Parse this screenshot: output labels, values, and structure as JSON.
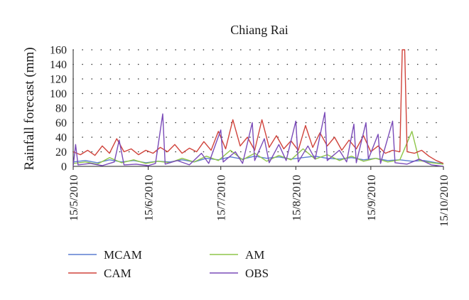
{
  "chart_data": {
    "type": "line",
    "title": "Chiang Rai",
    "ylabel": "Rainfall forecast (mm)",
    "xlabel": "",
    "ylim": [
      0,
      160
    ],
    "yticks": [
      0,
      20,
      40,
      60,
      80,
      100,
      120,
      140,
      160
    ],
    "x_start": "2010-05-15",
    "x_end": "2010-10-15",
    "x_ticks": [
      {
        "label": "15/5/2010",
        "date": "2010-05-15"
      },
      {
        "label": "15/6/2010",
        "date": "2010-06-15"
      },
      {
        "label": "15/7/2010",
        "date": "2010-07-15"
      },
      {
        "label": "15/8/2010",
        "date": "2010-08-15"
      },
      {
        "label": "15/9/2010",
        "date": "2010-09-15"
      },
      {
        "label": "15/10/2010",
        "date": "2010-10-15"
      }
    ],
    "grid": "horizontal-dotted",
    "legend_position": "bottom",
    "series": [
      {
        "name": "MCAM",
        "color": "#5b7fd1",
        "points": [
          [
            "2010-05-15",
            6
          ],
          [
            "2010-05-20",
            8
          ],
          [
            "2010-05-25",
            5
          ],
          [
            "2010-05-30",
            9
          ],
          [
            "2010-06-04",
            6
          ],
          [
            "2010-06-09",
            8
          ],
          [
            "2010-06-14",
            5
          ],
          [
            "2010-06-19",
            7
          ],
          [
            "2010-06-24",
            6
          ],
          [
            "2010-06-29",
            9
          ],
          [
            "2010-07-04",
            6
          ],
          [
            "2010-07-09",
            11
          ],
          [
            "2010-07-14",
            9
          ],
          [
            "2010-07-19",
            13
          ],
          [
            "2010-07-24",
            10
          ],
          [
            "2010-07-29",
            14
          ],
          [
            "2010-08-03",
            11
          ],
          [
            "2010-08-08",
            13
          ],
          [
            "2010-08-13",
            10
          ],
          [
            "2010-08-18",
            12
          ],
          [
            "2010-08-23",
            14
          ],
          [
            "2010-08-28",
            11
          ],
          [
            "2010-09-02",
            10
          ],
          [
            "2010-09-07",
            12
          ],
          [
            "2010-09-12",
            9
          ],
          [
            "2010-09-17",
            11
          ],
          [
            "2010-09-22",
            8
          ],
          [
            "2010-09-27",
            9
          ],
          [
            "2010-10-02",
            7
          ],
          [
            "2010-10-07",
            8
          ],
          [
            "2010-10-12",
            5
          ],
          [
            "2010-10-15",
            4
          ]
        ]
      },
      {
        "name": "AM",
        "color": "#8fc64a",
        "points": [
          [
            "2010-05-15",
            4
          ],
          [
            "2010-05-20",
            6
          ],
          [
            "2010-05-25",
            3
          ],
          [
            "2010-05-30",
            12
          ],
          [
            "2010-06-04",
            5
          ],
          [
            "2010-06-09",
            9
          ],
          [
            "2010-06-14",
            4
          ],
          [
            "2010-06-19",
            7
          ],
          [
            "2010-06-24",
            5
          ],
          [
            "2010-06-29",
            11
          ],
          [
            "2010-07-04",
            6
          ],
          [
            "2010-07-09",
            14
          ],
          [
            "2010-07-14",
            8
          ],
          [
            "2010-07-19",
            22
          ],
          [
            "2010-07-24",
            9
          ],
          [
            "2010-07-29",
            18
          ],
          [
            "2010-08-03",
            7
          ],
          [
            "2010-08-08",
            15
          ],
          [
            "2010-08-13",
            9
          ],
          [
            "2010-08-18",
            24
          ],
          [
            "2010-08-23",
            10
          ],
          [
            "2010-08-28",
            16
          ],
          [
            "2010-09-02",
            8
          ],
          [
            "2010-09-07",
            14
          ],
          [
            "2010-09-12",
            7
          ],
          [
            "2010-09-17",
            11
          ],
          [
            "2010-09-22",
            6
          ],
          [
            "2010-09-27",
            9
          ],
          [
            "2010-10-02",
            48
          ],
          [
            "2010-10-05",
            8
          ],
          [
            "2010-10-10",
            5
          ],
          [
            "2010-10-15",
            3
          ]
        ]
      },
      {
        "name": "CAM",
        "color": "#d0433b",
        "points": [
          [
            "2010-05-15",
            20
          ],
          [
            "2010-05-18",
            16
          ],
          [
            "2010-05-21",
            22
          ],
          [
            "2010-05-24",
            15
          ],
          [
            "2010-05-27",
            28
          ],
          [
            "2010-05-30",
            18
          ],
          [
            "2010-06-02",
            38
          ],
          [
            "2010-06-05",
            20
          ],
          [
            "2010-06-08",
            24
          ],
          [
            "2010-06-11",
            16
          ],
          [
            "2010-06-14",
            22
          ],
          [
            "2010-06-17",
            18
          ],
          [
            "2010-06-20",
            26
          ],
          [
            "2010-06-23",
            20
          ],
          [
            "2010-06-26",
            30
          ],
          [
            "2010-06-29",
            18
          ],
          [
            "2010-07-02",
            25
          ],
          [
            "2010-07-05",
            20
          ],
          [
            "2010-07-08",
            34
          ],
          [
            "2010-07-11",
            22
          ],
          [
            "2010-07-14",
            48
          ],
          [
            "2010-07-17",
            24
          ],
          [
            "2010-07-20",
            64
          ],
          [
            "2010-07-23",
            28
          ],
          [
            "2010-07-26",
            40
          ],
          [
            "2010-07-29",
            22
          ],
          [
            "2010-08-01",
            64
          ],
          [
            "2010-08-04",
            26
          ],
          [
            "2010-08-07",
            42
          ],
          [
            "2010-08-10",
            24
          ],
          [
            "2010-08-13",
            35
          ],
          [
            "2010-08-16",
            22
          ],
          [
            "2010-08-19",
            56
          ],
          [
            "2010-08-22",
            26
          ],
          [
            "2010-08-25",
            46
          ],
          [
            "2010-08-28",
            28
          ],
          [
            "2010-08-31",
            40
          ],
          [
            "2010-09-03",
            22
          ],
          [
            "2010-09-06",
            36
          ],
          [
            "2010-09-09",
            24
          ],
          [
            "2010-09-12",
            42
          ],
          [
            "2010-09-15",
            20
          ],
          [
            "2010-09-18",
            28
          ],
          [
            "2010-09-21",
            18
          ],
          [
            "2010-09-24",
            22
          ],
          [
            "2010-09-27",
            20
          ],
          [
            "2010-09-28",
            160
          ],
          [
            "2010-09-29",
            160
          ],
          [
            "2010-09-30",
            20
          ],
          [
            "2010-10-03",
            18
          ],
          [
            "2010-10-06",
            22
          ],
          [
            "2010-10-09",
            14
          ],
          [
            "2010-10-12",
            8
          ],
          [
            "2010-10-15",
            4
          ]
        ]
      },
      {
        "name": "OBS",
        "color": "#7a4bb8",
        "points": [
          [
            "2010-05-15",
            0
          ],
          [
            "2010-05-16",
            30
          ],
          [
            "2010-05-17",
            2
          ],
          [
            "2010-05-22",
            4
          ],
          [
            "2010-05-27",
            1
          ],
          [
            "2010-06-01",
            6
          ],
          [
            "2010-06-03",
            36
          ],
          [
            "2010-06-05",
            2
          ],
          [
            "2010-06-10",
            3
          ],
          [
            "2010-06-15",
            1
          ],
          [
            "2010-06-18",
            4
          ],
          [
            "2010-06-21",
            72
          ],
          [
            "2010-06-22",
            3
          ],
          [
            "2010-06-27",
            8
          ],
          [
            "2010-07-02",
            2
          ],
          [
            "2010-07-07",
            18
          ],
          [
            "2010-07-10",
            4
          ],
          [
            "2010-07-15",
            50
          ],
          [
            "2010-07-16",
            6
          ],
          [
            "2010-07-21",
            20
          ],
          [
            "2010-07-24",
            4
          ],
          [
            "2010-07-28",
            60
          ],
          [
            "2010-07-29",
            8
          ],
          [
            "2010-08-02",
            38
          ],
          [
            "2010-08-04",
            5
          ],
          [
            "2010-08-08",
            30
          ],
          [
            "2010-08-11",
            8
          ],
          [
            "2010-08-15",
            62
          ],
          [
            "2010-08-16",
            6
          ],
          [
            "2010-08-20",
            28
          ],
          [
            "2010-08-23",
            10
          ],
          [
            "2010-08-27",
            74
          ],
          [
            "2010-08-28",
            8
          ],
          [
            "2010-09-02",
            22
          ],
          [
            "2010-09-05",
            6
          ],
          [
            "2010-09-08",
            58
          ],
          [
            "2010-09-09",
            5
          ],
          [
            "2010-09-13",
            60
          ],
          [
            "2010-09-14",
            10
          ],
          [
            "2010-09-18",
            44
          ],
          [
            "2010-09-19",
            4
          ],
          [
            "2010-09-24",
            62
          ],
          [
            "2010-09-25",
            5
          ],
          [
            "2010-09-30",
            3
          ],
          [
            "2010-10-05",
            10
          ],
          [
            "2010-10-10",
            2
          ],
          [
            "2010-10-15",
            0
          ]
        ]
      }
    ]
  }
}
